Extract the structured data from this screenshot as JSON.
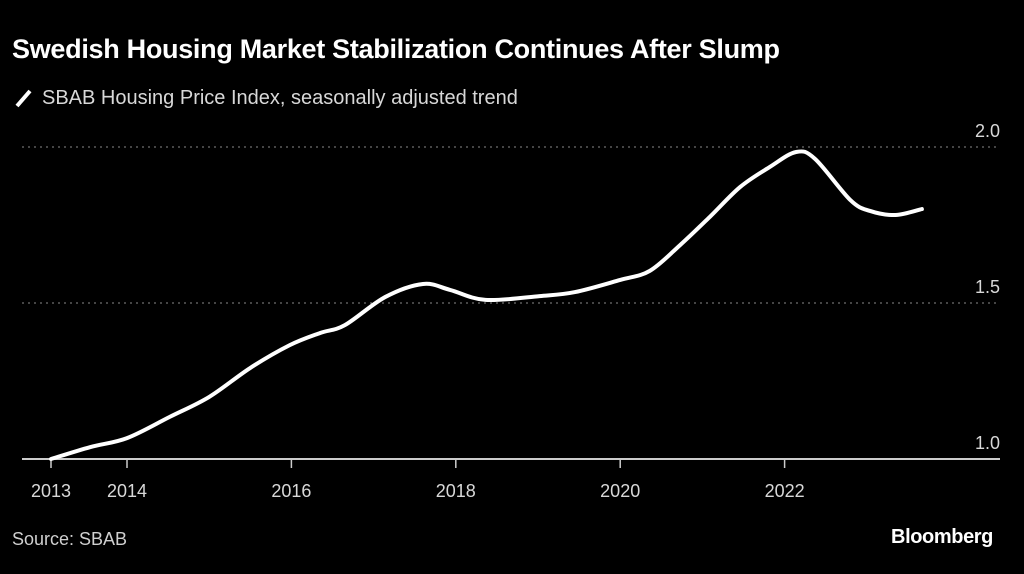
{
  "title": "Swedish Housing Market Stabilization Continues After Slump",
  "legend": {
    "icon": "line-swatch-icon",
    "label": "SBAB Housing Price Index, seasonally adjusted trend",
    "color": "#ffffff"
  },
  "footer": {
    "source": "Source: SBAB",
    "brand": "Bloomberg"
  },
  "colors": {
    "background": "#000000",
    "line": "#ffffff",
    "grid": "#8a8a8a",
    "axis": "#cccccc",
    "text": "#d8d8d8"
  },
  "chart_data": {
    "type": "line",
    "title": "Swedish Housing Market Stabilization Continues After Slump",
    "xlabel": "",
    "ylabel": "",
    "xlim": [
      2013.06,
      2024.3
    ],
    "ylim": [
      1.0,
      2.0
    ],
    "grid": true,
    "y_axis_side": "right",
    "legend_position": "top-left",
    "x_ticks": [
      {
        "value": 2013.06,
        "label": "2013"
      },
      {
        "value": 2014,
        "label": "2014"
      },
      {
        "value": 2016,
        "label": "2016"
      },
      {
        "value": 2018,
        "label": "2018"
      },
      {
        "value": 2020,
        "label": "2020"
      },
      {
        "value": 2022,
        "label": "2022"
      }
    ],
    "y_ticks": [
      {
        "value": 1.0,
        "label": "1.0"
      },
      {
        "value": 1.5,
        "label": "1.5"
      },
      {
        "value": 2.0,
        "label": "2.0"
      }
    ],
    "series": [
      {
        "name": "SBAB Housing Price Index, seasonally adjusted trend",
        "x": [
          2013.06,
          2013.55,
          2014.0,
          2014.52,
          2015.0,
          2015.5,
          2015.98,
          2016.35,
          2016.65,
          2017.14,
          2017.6,
          2017.93,
          2018.36,
          2019.02,
          2019.45,
          2020.0,
          2020.36,
          2020.73,
          2021.09,
          2021.46,
          2021.82,
          2022.14,
          2022.37,
          2022.8,
          2023.04,
          2023.35,
          2023.67
        ],
        "values": [
          1.0,
          1.038,
          1.067,
          1.135,
          1.199,
          1.292,
          1.365,
          1.404,
          1.429,
          1.519,
          1.561,
          1.542,
          1.51,
          1.522,
          1.535,
          1.574,
          1.603,
          1.686,
          1.776,
          1.872,
          1.936,
          1.984,
          1.962,
          1.83,
          1.795,
          1.782,
          1.801
        ]
      }
    ]
  }
}
